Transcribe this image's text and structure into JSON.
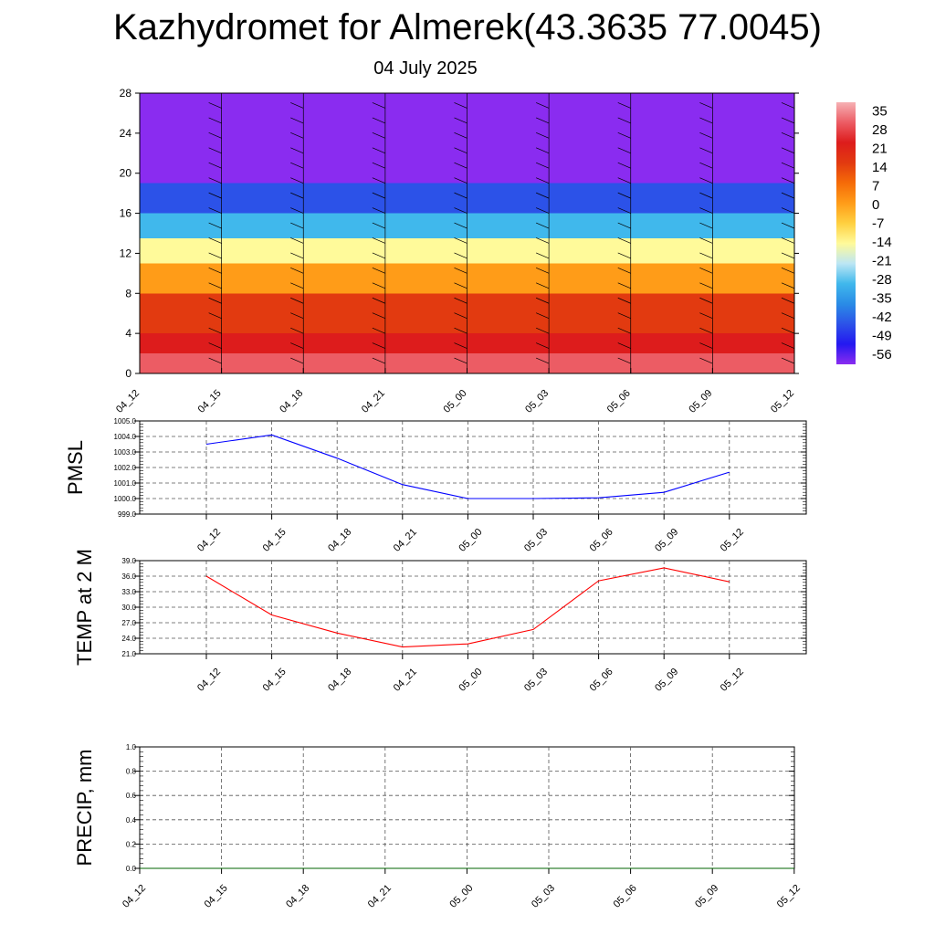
{
  "header": {
    "title": "Kazhydromet for Almerek(43.3635 77.0045)",
    "date": "04 July 2025"
  },
  "time_labels": [
    "04_12",
    "04_15",
    "04_18",
    "04_21",
    "05_00",
    "05_03",
    "05_06",
    "05_09",
    "05_12"
  ],
  "colorbar": {
    "labels": [
      "35",
      "28",
      "21",
      "14",
      "7",
      "0",
      "-7",
      "-14",
      "-21",
      "-28",
      "-35",
      "-42",
      "-49",
      "-56"
    ],
    "colors": [
      "#f6b1b4",
      "#ec5c64",
      "#dd1c1c",
      "#e23a10",
      "#f56b08",
      "#ff9c18",
      "#ffd040",
      "#fffa9a",
      "#bce6f4",
      "#40b8ec",
      "#2a8ce6",
      "#2c52e8",
      "#2418f0",
      "#8a2cf0"
    ]
  },
  "chart_data": [
    {
      "type": "heatmap",
      "title": "",
      "xlabel": "",
      "ylabel": "",
      "x": [
        "04_12",
        "04_15",
        "04_18",
        "04_21",
        "05_00",
        "05_03",
        "05_06",
        "05_09",
        "05_12"
      ],
      "yticks": [
        0,
        4,
        8,
        12,
        16,
        20,
        24,
        28
      ],
      "ylim": [
        0,
        28
      ],
      "value_bands": [
        {
          "from": 0,
          "to": 2,
          "value": 28
        },
        {
          "from": 2,
          "to": 4,
          "value": 21
        },
        {
          "from": 4,
          "to": 8,
          "value": 14
        },
        {
          "from": 8,
          "to": 11,
          "value": 0
        },
        {
          "from": 11,
          "to": 13.5,
          "value": -14
        },
        {
          "from": 13.5,
          "to": 16,
          "value": -28
        },
        {
          "from": 16,
          "to": 19,
          "value": -42
        },
        {
          "from": 19,
          "to": 21.5,
          "value": -56
        },
        {
          "from": 21.5,
          "to": 28,
          "value": -60
        }
      ]
    },
    {
      "type": "line",
      "ylabel": "PMSL",
      "x": [
        "04_12",
        "04_15",
        "04_18",
        "04_21",
        "05_00",
        "05_03",
        "05_06",
        "05_09",
        "05_12"
      ],
      "ylim": [
        999.0,
        1005.0
      ],
      "yticks": [
        "999.0",
        "1000.0",
        "1001.0",
        "1002.0",
        "1003.0",
        "1004.0",
        "1005.0"
      ],
      "grid": true,
      "series": [
        {
          "values": [
            1003.5,
            1004.1,
            1002.6,
            1000.9,
            1000.0,
            1000.0,
            1000.05,
            1000.4,
            1001.7
          ],
          "color": "#0000ff"
        }
      ]
    },
    {
      "type": "line",
      "ylabel": "TEMP at 2 M",
      "x": [
        "04_12",
        "04_15",
        "04_18",
        "04_21",
        "05_00",
        "05_03",
        "05_06",
        "05_09",
        "05_12"
      ],
      "ylim": [
        21.0,
        39.0
      ],
      "yticks": [
        "21.0",
        "24.0",
        "27.0",
        "30.0",
        "33.0",
        "36.0",
        "39.0"
      ],
      "grid": true,
      "series": [
        {
          "values": [
            36.0,
            28.5,
            25.0,
            22.3,
            22.9,
            25.7,
            35.1,
            37.6,
            34.9
          ],
          "color": "#ff0000"
        }
      ]
    },
    {
      "type": "line",
      "ylabel": "PRECIP, mm",
      "x": [
        "04_12",
        "04_15",
        "04_18",
        "04_21",
        "05_00",
        "05_03",
        "05_06",
        "05_09",
        "05_12"
      ],
      "ylim": [
        0.0,
        1.0
      ],
      "yticks": [
        "0.0",
        "0.2",
        "0.4",
        "0.6",
        "0.8",
        "1.0"
      ],
      "grid": true,
      "series": [
        {
          "values": [
            0,
            0,
            0,
            0,
            0,
            0,
            0,
            0,
            0
          ],
          "color": "#006400"
        }
      ]
    }
  ]
}
